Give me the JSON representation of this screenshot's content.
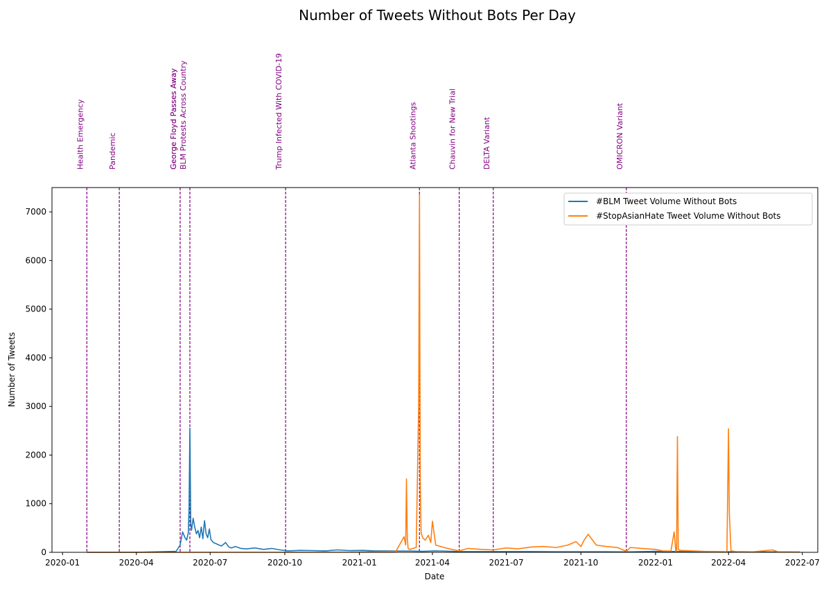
{
  "chart_data": {
    "type": "line",
    "title": "Number of Tweets Without Bots Per Day",
    "xlabel": "Date",
    "ylabel": "Number of Tweets",
    "xlim": [
      "2019-12-19",
      "2022-07-20"
    ],
    "ylim": [
      0,
      7500
    ],
    "grid": false,
    "legend_position": "top-right",
    "event_color": "#800080",
    "x_ticks": [
      "2020-01",
      "2020-04",
      "2020-07",
      "2020-10",
      "2021-01",
      "2021-04",
      "2021-07",
      "2021-10",
      "2022-01",
      "2022-04",
      "2022-07"
    ],
    "x_tick_dates": [
      "2020-01-01",
      "2020-04-01",
      "2020-07-01",
      "2020-10-01",
      "2021-01-01",
      "2021-04-01",
      "2021-07-01",
      "2021-10-01",
      "2022-01-01",
      "2022-04-01",
      "2022-07-01"
    ],
    "y_ticks": [
      0,
      1000,
      2000,
      3000,
      4000,
      5000,
      6000,
      7000
    ],
    "events": [
      {
        "date": "2020-01-31",
        "label": "Health Emergency",
        "label2": ""
      },
      {
        "date": "2020-03-11",
        "label": "Pandemic",
        "label2": ""
      },
      {
        "date": "2020-05-25",
        "label": "George Floyd Passes Away",
        "label2": ""
      },
      {
        "date": "2020-06-06",
        "label": "George Floyd Passes Away",
        "label2": "BLM Protests Across Country"
      },
      {
        "date": "2020-10-02",
        "label": "Trump Infected With COVID-19",
        "label2": ""
      },
      {
        "date": "2021-03-16",
        "label": "Atlanta Shootings",
        "label2": ""
      },
      {
        "date": "2021-05-04",
        "label": "Chauvin for New Trial",
        "label2": ""
      },
      {
        "date": "2021-06-15",
        "label": "DELTA Variant",
        "label2": ""
      },
      {
        "date": "2021-11-26",
        "label": "OMICRON Variant",
        "label2": ""
      }
    ],
    "series": [
      {
        "name": "#BLM Tweet Volume Without Bots",
        "color": "#1f77b4",
        "x": [
          "2020-01-31",
          "2020-04-01",
          "2020-05-20",
          "2020-05-25",
          "2020-05-28",
          "2020-05-31",
          "2020-06-02",
          "2020-06-04",
          "2020-06-05",
          "2020-06-06",
          "2020-06-07",
          "2020-06-08",
          "2020-06-10",
          "2020-06-12",
          "2020-06-14",
          "2020-06-16",
          "2020-06-18",
          "2020-06-20",
          "2020-06-22",
          "2020-06-24",
          "2020-06-26",
          "2020-06-28",
          "2020-06-30",
          "2020-07-02",
          "2020-07-05",
          "2020-07-08",
          "2020-07-12",
          "2020-07-15",
          "2020-07-20",
          "2020-07-24",
          "2020-07-27",
          "2020-08-01",
          "2020-08-08",
          "2020-08-15",
          "2020-08-25",
          "2020-09-05",
          "2020-09-15",
          "2020-09-25",
          "2020-10-05",
          "2020-10-20",
          "2020-11-05",
          "2020-11-20",
          "2020-12-05",
          "2020-12-20",
          "2021-01-05",
          "2021-01-20",
          "2021-02-05",
          "2021-02-20",
          "2021-03-05",
          "2021-03-20",
          "2021-04-05",
          "2021-05-04",
          "2021-06-01",
          "2021-07-01",
          "2021-08-01",
          "2021-09-01",
          "2021-10-01",
          "2021-11-01",
          "2021-12-01",
          "2022-01-01",
          "2022-02-01",
          "2022-03-01",
          "2022-04-01",
          "2022-05-01",
          "2022-06-01",
          "2022-06-28"
        ],
        "values": [
          0,
          0,
          20,
          150,
          420,
          300,
          250,
          400,
          900,
          2550,
          600,
          450,
          700,
          520,
          380,
          450,
          300,
          520,
          280,
          650,
          380,
          300,
          480,
          260,
          200,
          180,
          150,
          130,
          200,
          110,
          90,
          120,
          80,
          70,
          90,
          60,
          80,
          50,
          30,
          40,
          35,
          30,
          50,
          35,
          40,
          30,
          30,
          25,
          25,
          20,
          30,
          15,
          15,
          15,
          15,
          12,
          12,
          12,
          10,
          20,
          15,
          10,
          12,
          10,
          8,
          5
        ]
      },
      {
        "name": "#StopAsianHate Tweet Volume Without Bots",
        "color": "#ff7f0e",
        "x": [
          "2020-01-31",
          "2020-04-01",
          "2020-07-01",
          "2020-10-01",
          "2021-01-01",
          "2021-02-15",
          "2021-02-25",
          "2021-02-27",
          "2021-02-28",
          "2021-03-01",
          "2021-03-02",
          "2021-03-04",
          "2021-03-08",
          "2021-03-12",
          "2021-03-15",
          "2021-03-16",
          "2021-03-17",
          "2021-03-18",
          "2021-03-20",
          "2021-03-23",
          "2021-03-27",
          "2021-03-30",
          "2021-04-01",
          "2021-04-05",
          "2021-04-15",
          "2021-04-25",
          "2021-05-04",
          "2021-05-15",
          "2021-06-01",
          "2021-06-15",
          "2021-07-01",
          "2021-07-15",
          "2021-08-01",
          "2021-08-15",
          "2021-09-01",
          "2021-09-15",
          "2021-09-25",
          "2021-10-01",
          "2021-10-05",
          "2021-10-10",
          "2021-10-20",
          "2021-11-01",
          "2021-11-15",
          "2021-11-26",
          "2021-12-01",
          "2021-12-15",
          "2022-01-01",
          "2022-01-10",
          "2022-01-20",
          "2022-01-24",
          "2022-01-26",
          "2022-01-27",
          "2022-01-28",
          "2022-01-29",
          "2022-01-31",
          "2022-02-15",
          "2022-03-01",
          "2022-03-20",
          "2022-03-30",
          "2022-04-01",
          "2022-04-02",
          "2022-04-04",
          "2022-04-10",
          "2022-05-01",
          "2022-05-25",
          "2022-06-01",
          "2022-06-28"
        ],
        "values": [
          0,
          0,
          0,
          0,
          5,
          20,
          320,
          150,
          1510,
          300,
          80,
          60,
          80,
          100,
          3000,
          7350,
          1500,
          400,
          300,
          250,
          350,
          200,
          640,
          150,
          100,
          60,
          30,
          80,
          60,
          50,
          90,
          70,
          110,
          120,
          100,
          150,
          220,
          120,
          250,
          370,
          150,
          120,
          100,
          20,
          100,
          80,
          60,
          30,
          25,
          420,
          20,
          15,
          2380,
          60,
          40,
          30,
          20,
          15,
          10,
          2540,
          800,
          30,
          15,
          10,
          50,
          10,
          5
        ]
      }
    ]
  }
}
